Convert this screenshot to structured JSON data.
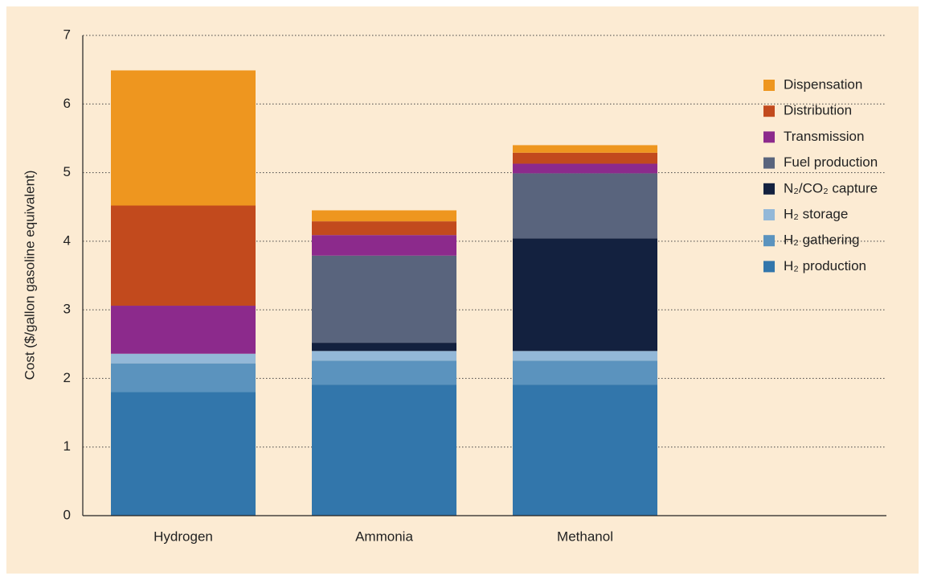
{
  "chart_data": {
    "type": "stacked_bar",
    "y_label": "Cost ($/gallon gasoline equivalent)",
    "categories": [
      "Hydrogen",
      "Ammonia",
      "Methanol"
    ],
    "series": [
      {
        "name": "H₂ production",
        "color": "#3276ab",
        "values": [
          1.8,
          1.91,
          1.91
        ]
      },
      {
        "name": "H₂ gathering",
        "color": "#5b93be",
        "values": [
          0.42,
          0.35,
          0.35
        ]
      },
      {
        "name": "H₂ storage",
        "color": "#93b8d8",
        "values": [
          0.14,
          0.14,
          0.14
        ]
      },
      {
        "name": "N₂/CO₂ capture",
        "color": "#13213f",
        "values": [
          0,
          0.12,
          1.64
        ]
      },
      {
        "name": "Fuel production",
        "color": "#59647d",
        "values": [
          0,
          1.27,
          0.95
        ]
      },
      {
        "name": "Transmission",
        "color": "#8c2a8c",
        "values": [
          0.7,
          0.3,
          0.14
        ]
      },
      {
        "name": "Distribution",
        "color": "#c24a1d",
        "values": [
          1.46,
          0.2,
          0.16
        ]
      },
      {
        "name": "Dispensation",
        "color": "#ee961f",
        "values": [
          1.97,
          0.16,
          0.11
        ]
      }
    ],
    "ylim": [
      0,
      7
    ],
    "yticks": [
      0,
      1,
      2,
      3,
      4,
      5,
      6,
      7
    ],
    "grid": true,
    "legend": "right"
  }
}
